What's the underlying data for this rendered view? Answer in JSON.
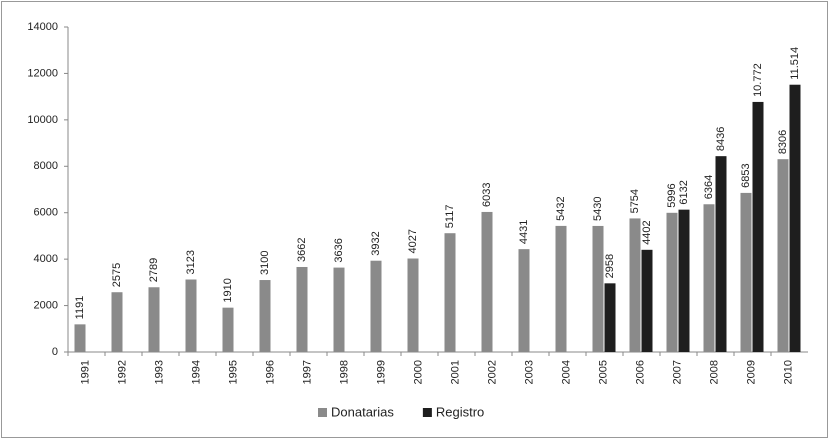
{
  "chart_data": {
    "type": "bar",
    "categories": [
      "1991",
      "1992",
      "1993",
      "1994",
      "1995",
      "1996",
      "1997",
      "1998",
      "1999",
      "2000",
      "2001",
      "2002",
      "2003",
      "2004",
      "2005",
      "2006",
      "2007",
      "2008",
      "2009",
      "2010"
    ],
    "series": [
      {
        "name": "Donatarias",
        "color": "#8a8a8a",
        "values": [
          1191,
          2575,
          2789,
          3123,
          1910,
          3100,
          3662,
          3636,
          3932,
          4027,
          5117,
          6033,
          4431,
          5432,
          5430,
          5754,
          5996,
          6364,
          6853,
          8306
        ]
      },
      {
        "name": "Registro",
        "color": "#1e1e1e",
        "values": [
          null,
          null,
          null,
          null,
          null,
          null,
          null,
          null,
          null,
          null,
          null,
          null,
          null,
          null,
          2958,
          4402,
          6132,
          8436,
          10772,
          11514
        ],
        "value_labels": [
          null,
          null,
          null,
          null,
          null,
          null,
          null,
          null,
          null,
          null,
          null,
          null,
          null,
          null,
          "2958",
          "4402",
          "6132",
          "8436",
          "10.772",
          "11.514"
        ]
      }
    ],
    "ylim": [
      0,
      14000
    ],
    "yticks": [
      0,
      2000,
      4000,
      6000,
      8000,
      10000,
      12000,
      14000
    ],
    "grid": false,
    "legend": "bottom"
  }
}
